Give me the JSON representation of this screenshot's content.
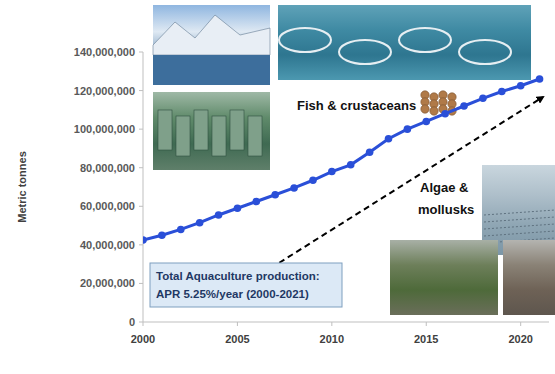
{
  "chart_data": {
    "type": "line",
    "y_label": "Metric tonnes",
    "annotations": [
      "Fish & crustaceans",
      "Algae & mollusks",
      "Total Aquaculture production:",
      "APR 5.25%/year (2000-2021)"
    ],
    "x": [
      2000,
      2001,
      2002,
      2003,
      2004,
      2005,
      2006,
      2007,
      2008,
      2009,
      2010,
      2011,
      2012,
      2013,
      2014,
      2015,
      2016,
      2017,
      2018,
      2019,
      2020,
      2021
    ],
    "values": [
      42500000,
      45000000,
      48000000,
      51500000,
      55500000,
      59000000,
      62500000,
      66000000,
      69500000,
      73500000,
      78000000,
      81500000,
      88000000,
      95000000,
      100000000,
      104000000,
      108000000,
      112000000,
      116000000,
      119500000,
      122500000,
      126000000
    ],
    "color": "#2a4fd8",
    "marker": "circle",
    "xlim": [
      2000,
      2021.5
    ],
    "xticks": [
      2000,
      2005,
      2010,
      2015,
      2020
    ],
    "ylim": [
      0,
      140000000
    ],
    "yticks": [
      0,
      {
        "value": 20000000,
        "label": "20,000,000"
      },
      {
        "value": 40000000,
        "label": "40,000,000"
      },
      {
        "value": 60000000,
        "label": "60,000,000"
      },
      {
        "value": 80000000,
        "label": "80,000,000"
      },
      {
        "value": 100000000,
        "label": "100,000,000"
      },
      {
        "value": 120000000,
        "label": "120,000,000"
      },
      {
        "value": 140000000,
        "label": "140,000,000"
      }
    ],
    "grid": false
  }
}
